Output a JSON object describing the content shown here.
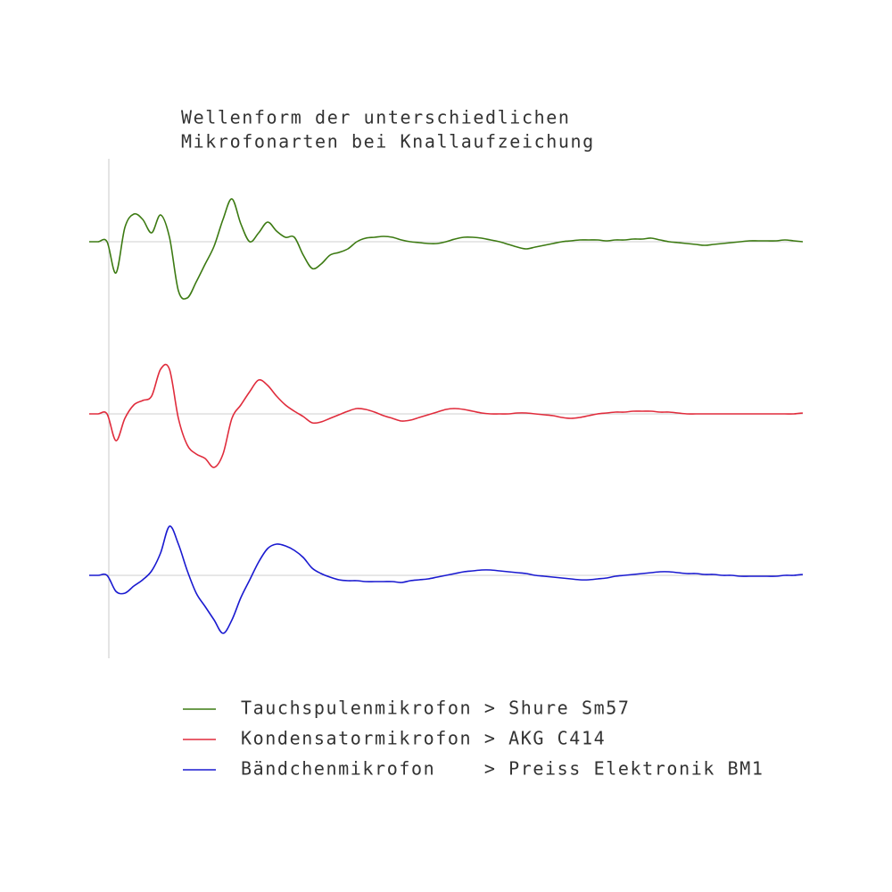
{
  "chart_data": {
    "type": "line",
    "title": [
      "Wellenform der unterschiedlichen",
      "Mikrofonarten bei Knallaufzeichung"
    ],
    "series": [
      {
        "name": "Tauchspulenmikrofon > Shure Sm57",
        "color": "#3c7a12",
        "values": [
          0,
          0,
          0,
          -35,
          16,
          31,
          25,
          10,
          30,
          5,
          -55,
          -63,
          -45,
          -25,
          -5,
          25,
          48,
          20,
          0,
          10,
          22,
          12,
          5,
          5,
          -15,
          -30,
          -25,
          -15,
          -12,
          -8,
          0,
          4,
          5,
          6,
          5,
          2,
          0,
          -1,
          -2,
          -2,
          0,
          3,
          5,
          5,
          4,
          2,
          0,
          -3,
          -6,
          -8,
          -6,
          -4,
          -2,
          0,
          1,
          2,
          2,
          2,
          1,
          2,
          2,
          3,
          3,
          4,
          2,
          0,
          -1,
          -2,
          -3,
          -4,
          -3,
          -2,
          -1,
          0,
          1,
          1,
          1,
          1,
          2,
          1,
          0
        ]
      },
      {
        "name": "Kondensatormikrofon > AKG C414",
        "color": "#e02c3c",
        "values": [
          0,
          0,
          0,
          -30,
          -5,
          10,
          15,
          20,
          50,
          50,
          -5,
          -35,
          -45,
          -50,
          -60,
          -45,
          -5,
          10,
          25,
          38,
          32,
          20,
          10,
          3,
          -3,
          -10,
          -9,
          -5,
          -1,
          3,
          6,
          5,
          2,
          -2,
          -5,
          -8,
          -7,
          -4,
          -1,
          2,
          5,
          6,
          5,
          3,
          1,
          0,
          0,
          0,
          1,
          1,
          0,
          -1,
          -2,
          -4,
          -5,
          -4,
          -2,
          0,
          1,
          2,
          2,
          3,
          3,
          3,
          2,
          2,
          1,
          0,
          0,
          0,
          0,
          0,
          0,
          0,
          0,
          0,
          0,
          0,
          0,
          0,
          1
        ]
      },
      {
        "name": "Bändchenmikrofon    > Preiss Elektronik BM1",
        "color": "#1a1ad0",
        "values": [
          0,
          0,
          0,
          -18,
          -20,
          -12,
          -5,
          5,
          25,
          55,
          35,
          5,
          -20,
          -35,
          -50,
          -65,
          -50,
          -25,
          -5,
          15,
          30,
          35,
          33,
          28,
          20,
          8,
          2,
          -2,
          -5,
          -6,
          -6,
          -7,
          -7,
          -7,
          -7,
          -8,
          -6,
          -5,
          -4,
          -2,
          0,
          2,
          4,
          5,
          6,
          6,
          5,
          4,
          3,
          2,
          0,
          -1,
          -2,
          -3,
          -4,
          -5,
          -5,
          -4,
          -3,
          -1,
          0,
          1,
          2,
          3,
          4,
          4,
          3,
          2,
          2,
          1,
          1,
          0,
          0,
          -1,
          -1,
          -1,
          -1,
          -1,
          0,
          0,
          1
        ]
      }
    ]
  }
}
